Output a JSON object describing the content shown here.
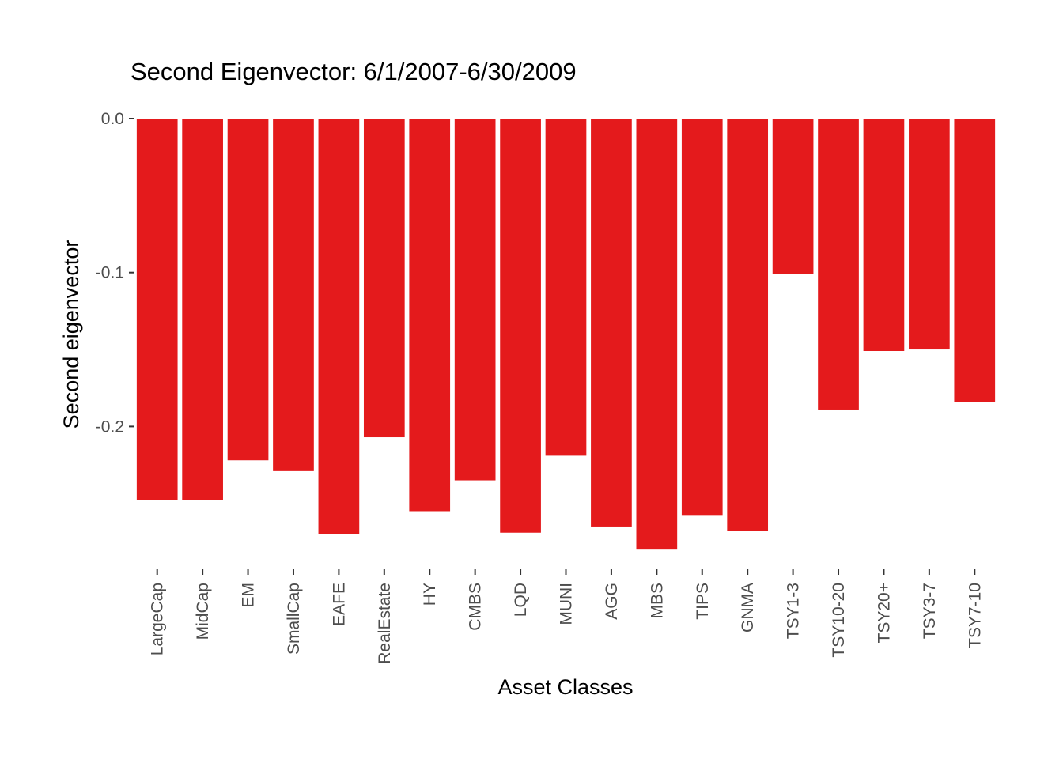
{
  "chart_data": {
    "type": "bar",
    "title": "Second Eigenvector: 6/1/2007-6/30/2009",
    "xlabel": "Asset Classes",
    "ylabel": "Second eigenvector",
    "categories": [
      "LargeCap",
      "MidCap",
      "EM",
      "SmallCap",
      "EAFE",
      "RealEstate",
      "HY",
      "CMBS",
      "LQD",
      "MUNI",
      "AGG",
      "MBS",
      "TIPS",
      "GNMA",
      "TSY1-3",
      "TSY10-20",
      "TSY20+",
      "TSY3-7",
      "TSY7-10"
    ],
    "values": [
      -0.248,
      -0.248,
      -0.222,
      -0.229,
      -0.27,
      -0.207,
      -0.255,
      -0.235,
      -0.269,
      -0.219,
      -0.265,
      -0.28,
      -0.258,
      -0.268,
      -0.101,
      -0.189,
      -0.151,
      -0.15,
      -0.184
    ],
    "ylim": [
      -0.283,
      0.0
    ],
    "yticks": [
      0.0,
      -0.1,
      -0.2
    ],
    "ytick_labels": [
      "0.0",
      "-0.1",
      "-0.2"
    ],
    "grid": false,
    "bar_color": "#e41a1c"
  }
}
